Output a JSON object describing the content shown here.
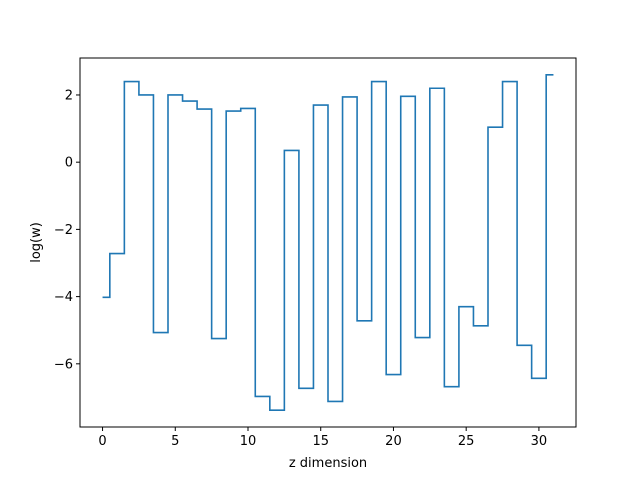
{
  "chart_data": {
    "type": "line",
    "drawstyle": "steps-mid",
    "xlabel": "z dimension",
    "ylabel": "log(w)",
    "xlim": [
      -1.55,
      32.55
    ],
    "ylim": [
      -7.88,
      3.1
    ],
    "xticks": [
      0,
      5,
      10,
      15,
      20,
      25,
      30
    ],
    "yticks": [
      -6,
      -4,
      -2,
      0,
      2
    ],
    "grid": false,
    "colors": {
      "line": "#1f77b4"
    },
    "x": [
      0,
      1,
      2,
      3,
      4,
      5,
      6,
      7,
      8,
      9,
      10,
      11,
      12,
      13,
      14,
      15,
      16,
      17,
      18,
      19,
      20,
      21,
      22,
      23,
      24,
      25,
      26,
      27,
      28,
      29,
      30,
      31
    ],
    "values": [
      -4.02,
      -2.72,
      2.4,
      2.0,
      -5.07,
      2.0,
      1.82,
      1.58,
      -5.25,
      1.52,
      1.6,
      -6.97,
      -7.38,
      0.35,
      -6.73,
      1.7,
      -7.12,
      1.94,
      -4.72,
      2.4,
      -6.32,
      1.96,
      -5.22,
      2.2,
      -6.68,
      -4.3,
      -4.87,
      1.04,
      2.4,
      -5.45,
      -6.43,
      2.6
    ]
  }
}
